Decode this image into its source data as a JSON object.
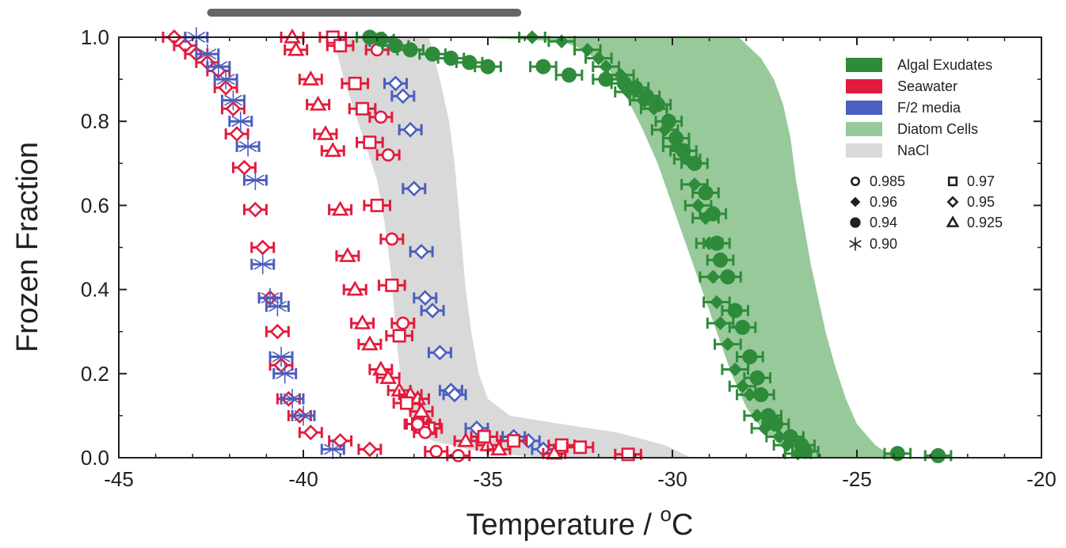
{
  "chart_data": {
    "type": "scatter",
    "xlabel_main": "Temperature / ",
    "xlabel_sup": "o",
    "xlabel_unit": "C",
    "ylabel": "Frozen Fraction",
    "xlim": [
      -45,
      -20
    ],
    "ylim": [
      0.0,
      1.0
    ],
    "x_ticks": [
      "-45",
      "-40",
      "-35",
      "-30",
      "-25",
      "-20"
    ],
    "y_ticks": [
      "0.0",
      "0.2",
      "0.4",
      "0.6",
      "0.8",
      "1.0"
    ],
    "grid": false,
    "legend_position": "top-right",
    "colors": {
      "algal": "#2e8b3a",
      "seawater": "#e31b3c",
      "f2": "#4a5fbf",
      "diatom": "#97c99a",
      "nacl": "#d9d9d9",
      "axis": "#231f20",
      "topbar": "#666666"
    },
    "legend": [
      {
        "label": "Algal Exudates",
        "color": "#2e8b3a"
      },
      {
        "label": "Seawater",
        "color": "#e31b3c"
      },
      {
        "label": "F/2 media",
        "color": "#4a5fbf"
      },
      {
        "label": "Diatom Cells",
        "color": "#97c99a"
      },
      {
        "label": "NaCl",
        "color": "#d9d9d9"
      }
    ],
    "marker_legend": [
      {
        "marker": "circle-open",
        "label": "0.985"
      },
      {
        "marker": "square-open",
        "label": "0.97"
      },
      {
        "marker": "diamond-filled",
        "label": "0.96"
      },
      {
        "marker": "diamond-open",
        "label": "0.95"
      },
      {
        "marker": "circle-filled",
        "label": "0.94"
      },
      {
        "marker": "triangle-open",
        "label": "0.925"
      },
      {
        "marker": "asterisk",
        "label": "0.90"
      }
    ],
    "top_bar_x": [
      -42.5,
      -34.2
    ],
    "bands": [
      {
        "name": "NaCl",
        "color": "#d9d9d9",
        "left": [
          [
            -39.2,
            1.0
          ],
          [
            -38.9,
            0.9
          ],
          [
            -38.6,
            0.82
          ],
          [
            -38.3,
            0.74
          ],
          [
            -38.0,
            0.66
          ],
          [
            -37.8,
            0.56
          ],
          [
            -37.65,
            0.46
          ],
          [
            -37.55,
            0.36
          ],
          [
            -37.45,
            0.26
          ],
          [
            -37.35,
            0.18
          ],
          [
            -37.2,
            0.12
          ],
          [
            -37.0,
            0.07
          ],
          [
            -36.5,
            0.04
          ],
          [
            -35.5,
            0.02
          ],
          [
            -34.5,
            0.008
          ],
          [
            -33.5,
            0.0
          ]
        ],
        "right": [
          [
            -36.6,
            1.0
          ],
          [
            -36.3,
            0.9
          ],
          [
            -36.05,
            0.8
          ],
          [
            -35.9,
            0.7
          ],
          [
            -35.8,
            0.6
          ],
          [
            -35.7,
            0.5
          ],
          [
            -35.6,
            0.4
          ],
          [
            -35.45,
            0.3
          ],
          [
            -35.25,
            0.2
          ],
          [
            -35.0,
            0.14
          ],
          [
            -34.4,
            0.1
          ],
          [
            -33.0,
            0.08
          ],
          [
            -31.5,
            0.06
          ],
          [
            -30.2,
            0.03
          ],
          [
            -29.5,
            0.0
          ]
        ]
      },
      {
        "name": "Diatom Cells",
        "color": "#97c99a",
        "left": [
          [
            -35.5,
            1.0
          ],
          [
            -33.0,
            0.99
          ],
          [
            -32.4,
            0.97
          ],
          [
            -31.7,
            0.92
          ],
          [
            -31.2,
            0.85
          ],
          [
            -30.8,
            0.78
          ],
          [
            -30.4,
            0.7
          ],
          [
            -30.0,
            0.6
          ],
          [
            -29.6,
            0.5
          ],
          [
            -29.2,
            0.4
          ],
          [
            -28.8,
            0.3
          ],
          [
            -28.4,
            0.2
          ],
          [
            -28.0,
            0.12
          ],
          [
            -27.5,
            0.06
          ],
          [
            -27.0,
            0.03
          ],
          [
            -26.3,
            0.0
          ]
        ],
        "right": [
          [
            -28.2,
            1.0
          ],
          [
            -27.6,
            0.95
          ],
          [
            -27.25,
            0.9
          ],
          [
            -27.0,
            0.84
          ],
          [
            -26.8,
            0.76
          ],
          [
            -26.65,
            0.66
          ],
          [
            -26.45,
            0.56
          ],
          [
            -26.25,
            0.46
          ],
          [
            -26.05,
            0.38
          ],
          [
            -25.85,
            0.3
          ],
          [
            -25.6,
            0.22
          ],
          [
            -25.3,
            0.14
          ],
          [
            -25.0,
            0.08
          ],
          [
            -24.5,
            0.03
          ],
          [
            -24.0,
            0.0
          ]
        ]
      }
    ],
    "series": [
      {
        "color_key": "seawater",
        "marker": "diamond-open",
        "err": 0.3,
        "points": [
          [
            -43.5,
            1.0
          ],
          [
            -43.2,
            0.98
          ],
          [
            -42.9,
            0.96
          ],
          [
            -42.6,
            0.94
          ],
          [
            -42.3,
            0.92
          ],
          [
            -42.1,
            0.88
          ],
          [
            -41.9,
            0.83
          ],
          [
            -41.8,
            0.77
          ],
          [
            -41.6,
            0.69
          ],
          [
            -41.3,
            0.59
          ],
          [
            -41.1,
            0.5
          ],
          [
            -40.9,
            0.38
          ],
          [
            -40.7,
            0.3
          ],
          [
            -40.6,
            0.22
          ],
          [
            -40.4,
            0.14
          ],
          [
            -40.1,
            0.1
          ],
          [
            -39.8,
            0.06
          ],
          [
            -39.0,
            0.04
          ],
          [
            -38.2,
            0.02
          ]
        ]
      },
      {
        "color_key": "f2",
        "marker": "asterisk",
        "err": 0.3,
        "points": [
          [
            -42.9,
            1.0
          ],
          [
            -42.6,
            0.96
          ],
          [
            -42.3,
            0.93
          ],
          [
            -42.1,
            0.9
          ],
          [
            -41.9,
            0.85
          ],
          [
            -41.7,
            0.8
          ],
          [
            -41.5,
            0.74
          ],
          [
            -41.3,
            0.66
          ],
          [
            -41.1,
            0.46
          ],
          [
            -40.9,
            0.38
          ],
          [
            -40.7,
            0.36
          ],
          [
            -40.6,
            0.24
          ],
          [
            -40.5,
            0.2
          ],
          [
            -40.3,
            0.14
          ],
          [
            -40.0,
            0.1
          ],
          [
            -39.2,
            0.02
          ]
        ]
      },
      {
        "color_key": "f2",
        "marker": "diamond-open",
        "err": 0.3,
        "points": [
          [
            -37.9,
            0.99
          ],
          [
            -37.5,
            0.89
          ],
          [
            -37.3,
            0.86
          ],
          [
            -37.1,
            0.78
          ],
          [
            -37.0,
            0.64
          ],
          [
            -36.8,
            0.49
          ],
          [
            -36.7,
            0.38
          ],
          [
            -36.5,
            0.35
          ],
          [
            -36.3,
            0.25
          ],
          [
            -36.0,
            0.16
          ],
          [
            -35.9,
            0.15
          ],
          [
            -35.3,
            0.07
          ],
          [
            -34.3,
            0.05
          ],
          [
            -33.9,
            0.04
          ],
          [
            -33.5,
            0.02
          ]
        ]
      },
      {
        "color_key": "seawater",
        "marker": "triangle-open",
        "err": 0.3,
        "points": [
          [
            -40.3,
            1.0
          ],
          [
            -40.2,
            0.97
          ],
          [
            -39.8,
            0.9
          ],
          [
            -39.6,
            0.84
          ],
          [
            -39.4,
            0.77
          ],
          [
            -39.2,
            0.73
          ],
          [
            -39.0,
            0.59
          ],
          [
            -38.8,
            0.48
          ],
          [
            -38.6,
            0.4
          ],
          [
            -38.4,
            0.32
          ],
          [
            -38.2,
            0.27
          ],
          [
            -37.9,
            0.21
          ],
          [
            -37.7,
            0.19
          ],
          [
            -37.4,
            0.16
          ],
          [
            -37.1,
            0.15
          ],
          [
            -36.9,
            0.14
          ],
          [
            -36.8,
            0.11
          ],
          [
            -36.6,
            0.08
          ],
          [
            -35.6,
            0.04
          ],
          [
            -35.0,
            0.03
          ],
          [
            -34.7,
            0.02
          ],
          [
            -33.2,
            0.01
          ]
        ]
      },
      {
        "color_key": "seawater",
        "marker": "square-open",
        "err": 0.35,
        "points": [
          [
            -39.2,
            1.0
          ],
          [
            -39.0,
            0.98
          ],
          [
            -38.6,
            0.89
          ],
          [
            -38.4,
            0.83
          ],
          [
            -38.2,
            0.75
          ],
          [
            -38.0,
            0.6
          ],
          [
            -37.6,
            0.41
          ],
          [
            -37.4,
            0.29
          ],
          [
            -37.2,
            0.13
          ],
          [
            -36.9,
            0.08
          ],
          [
            -36.6,
            0.07
          ],
          [
            -35.1,
            0.05
          ],
          [
            -34.3,
            0.04
          ],
          [
            -33.0,
            0.03
          ],
          [
            -32.5,
            0.025
          ],
          [
            -31.2,
            0.008
          ]
        ]
      },
      {
        "color_key": "seawater",
        "marker": "circle-open",
        "err": 0.3,
        "points": [
          [
            -38.0,
            0.97
          ],
          [
            -37.9,
            0.81
          ],
          [
            -37.7,
            0.72
          ],
          [
            -37.6,
            0.52
          ],
          [
            -37.3,
            0.32
          ],
          [
            -36.9,
            0.08
          ],
          [
            -36.7,
            0.06
          ],
          [
            -36.4,
            0.015
          ],
          [
            -35.8,
            0.005
          ]
        ]
      },
      {
        "color_key": "algal",
        "marker": "circle-filled",
        "err": 0.35,
        "points": [
          [
            -38.2,
            1.0
          ],
          [
            -37.9,
            0.995
          ],
          [
            -37.5,
            0.98
          ],
          [
            -37.1,
            0.97
          ],
          [
            -36.5,
            0.96
          ],
          [
            -36.0,
            0.95
          ],
          [
            -35.5,
            0.94
          ],
          [
            -35.0,
            0.93
          ],
          [
            -33.5,
            0.93
          ],
          [
            -32.8,
            0.91
          ],
          [
            -31.8,
            0.9
          ],
          [
            -31.3,
            0.89
          ],
          [
            -31.0,
            0.88
          ],
          [
            -30.7,
            0.86
          ],
          [
            -30.4,
            0.84
          ],
          [
            -30.1,
            0.8
          ],
          [
            -29.9,
            0.76
          ],
          [
            -29.7,
            0.73
          ],
          [
            -29.4,
            0.7
          ],
          [
            -29.1,
            0.63
          ],
          [
            -28.9,
            0.58
          ],
          [
            -28.8,
            0.51
          ],
          [
            -28.7,
            0.47
          ],
          [
            -28.5,
            0.43
          ],
          [
            -28.3,
            0.35
          ],
          [
            -28.1,
            0.31
          ],
          [
            -27.9,
            0.24
          ],
          [
            -27.7,
            0.19
          ],
          [
            -27.6,
            0.15
          ],
          [
            -27.4,
            0.1
          ],
          [
            -27.2,
            0.08
          ],
          [
            -26.8,
            0.05
          ],
          [
            -26.5,
            0.03
          ],
          [
            -26.4,
            0.015
          ],
          [
            -23.9,
            0.01
          ],
          [
            -22.8,
            0.005
          ]
        ]
      },
      {
        "color_key": "algal",
        "marker": "diamond-filled",
        "err": 0.35,
        "points": [
          [
            -33.8,
            1.0
          ],
          [
            -33.0,
            0.99
          ],
          [
            -32.3,
            0.97
          ],
          [
            -32.0,
            0.95
          ],
          [
            -31.8,
            0.93
          ],
          [
            -31.4,
            0.91
          ],
          [
            -31.2,
            0.87
          ],
          [
            -30.8,
            0.85
          ],
          [
            -30.5,
            0.83
          ],
          [
            -30.2,
            0.78
          ],
          [
            -29.9,
            0.74
          ],
          [
            -29.6,
            0.71
          ],
          [
            -29.4,
            0.65
          ],
          [
            -29.3,
            0.6
          ],
          [
            -29.1,
            0.57
          ],
          [
            -29.0,
            0.51
          ],
          [
            -28.9,
            0.43
          ],
          [
            -28.8,
            0.37
          ],
          [
            -28.7,
            0.32
          ],
          [
            -28.5,
            0.27
          ],
          [
            -28.3,
            0.21
          ],
          [
            -28.1,
            0.17
          ],
          [
            -27.9,
            0.15
          ],
          [
            -27.7,
            0.1
          ],
          [
            -27.5,
            0.07
          ],
          [
            -27.1,
            0.05
          ],
          [
            -26.9,
            0.03
          ],
          [
            -26.6,
            0.01
          ]
        ]
      }
    ]
  }
}
